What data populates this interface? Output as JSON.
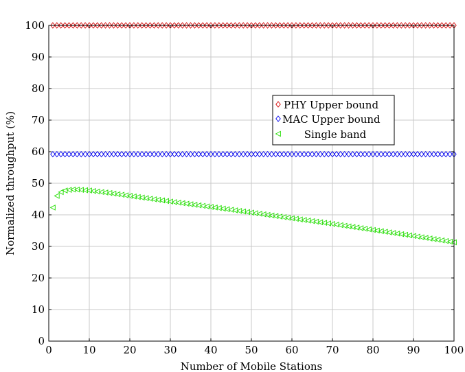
{
  "chart_data": {
    "type": "scatter",
    "xlabel": "Number of Mobile Stations",
    "ylabel": "Normalized throughput (%)",
    "xlim": [
      0,
      100
    ],
    "ylim": [
      0,
      100
    ],
    "x_ticks": [
      0,
      10,
      20,
      30,
      40,
      50,
      60,
      70,
      80,
      90,
      100
    ],
    "y_ticks": [
      0,
      10,
      20,
      30,
      40,
      50,
      60,
      70,
      80,
      90,
      100
    ],
    "grid": true,
    "legend_position": "upper-right",
    "series": [
      {
        "name": "PHY Upper bound",
        "color": "#d40000",
        "marker": "diamond",
        "value": 100,
        "x_start": 1,
        "x_end": 100
      },
      {
        "name": "MAC Upper bound",
        "color": "#0000ee",
        "marker": "diamond",
        "value": 59.2,
        "x_start": 1,
        "x_end": 100
      },
      {
        "name": "Single band",
        "color": "#22dd00",
        "marker": "triangle-left",
        "points": [
          [
            1,
            42.3
          ],
          [
            2,
            46.0
          ],
          [
            3,
            47.2
          ],
          [
            4,
            47.7
          ],
          [
            5,
            47.9
          ],
          [
            6,
            48.0
          ],
          [
            7,
            48.0
          ],
          [
            8,
            47.9
          ],
          [
            10,
            47.7
          ],
          [
            15,
            46.9
          ],
          [
            20,
            46.0
          ],
          [
            30,
            44.2
          ],
          [
            40,
            42.5
          ],
          [
            50,
            40.7
          ],
          [
            60,
            38.9
          ],
          [
            70,
            37.1
          ],
          [
            80,
            35.2
          ],
          [
            90,
            33.3
          ],
          [
            100,
            31.3
          ]
        ]
      }
    ]
  }
}
